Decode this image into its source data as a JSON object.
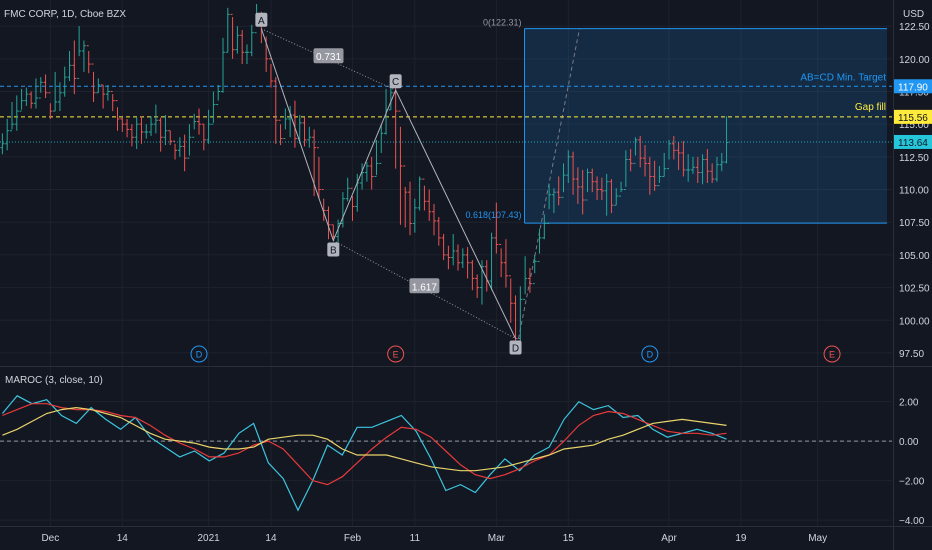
{
  "header": {
    "symbol_line": "FMC CORP, 1D, Cboe BZX",
    "currency": "USD"
  },
  "colors": {
    "background": "#131722",
    "grid": "#1e222d",
    "up": "#26a69a",
    "down": "#ef5350",
    "accent_blue": "#2196f3",
    "gap_yellow": "#ffeb3b",
    "price_cyan": "#26c6da",
    "maroc_blue": "#3cc6e0",
    "maroc_red": "#e83a3a",
    "maroc_yellow": "#e8d36a"
  },
  "chart_data": [
    {
      "type": "candlestick",
      "ylim": [
        96.5,
        124.5
      ],
      "y_ticks": [
        97.5,
        100.0,
        102.5,
        105.0,
        107.5,
        110.0,
        112.5,
        115.0,
        117.5,
        120.0,
        122.5
      ],
      "x_ticks": [
        {
          "label": "Dec",
          "i": 10
        },
        {
          "label": "14",
          "i": 25
        },
        {
          "label": "2021",
          "i": 43
        },
        {
          "label": "14",
          "i": 56
        },
        {
          "label": "Feb",
          "i": 73
        },
        {
          "label": "11",
          "i": 86
        },
        {
          "label": "Mar",
          "i": 103
        },
        {
          "label": "15",
          "i": 118
        },
        {
          "label": "Apr",
          "i": 139
        },
        {
          "label": "19",
          "i": 154
        },
        {
          "label": "May",
          "i": 170
        }
      ],
      "x_count": 186,
      "closes": [
        113.5,
        114.5,
        115.0,
        116.0,
        116.8,
        117.3,
        116.6,
        117.0,
        118.2,
        117.4,
        116.0,
        116.7,
        117.4,
        118.6,
        119.5,
        118.5,
        120.6,
        121.0,
        119.6,
        117.4,
        118.0,
        117.3,
        117.5,
        116.8,
        115.4,
        115.0,
        114.6,
        114.0,
        115.0,
        114.4,
        114.4,
        115.0,
        115.3,
        114.0,
        114.5,
        113.7,
        113.0,
        113.3,
        112.4,
        114.0,
        115.2,
        115.0,
        113.8,
        115.0,
        116.5,
        117.5,
        120.5,
        123.4,
        120.7,
        121.8,
        120.5,
        120.5,
        122.0,
        123.4,
        122.5,
        120.0,
        118.3,
        115.3,
        113.9,
        115.4,
        115.7,
        113.9,
        115.1,
        113.8,
        114.0,
        113.2,
        110.0,
        108.4,
        107.3,
        106.4,
        107.4,
        109.3,
        110.1,
        108.7,
        110.5,
        111.3,
        111.8,
        111.0,
        112.0,
        114.3,
        116.1,
        117.4,
        116.0,
        111.8,
        109.8,
        107.4,
        108.6,
        110.8,
        109.1,
        108.3,
        107.6,
        106.3,
        105.0,
        104.8,
        105.3,
        104.4,
        105.0,
        104.4,
        103.2,
        102.5,
        104.1,
        103.0,
        106.3,
        105.8,
        104.4,
        103.4,
        101.3,
        98.6,
        101.6,
        103.2,
        102.8,
        104.5,
        106.3,
        107.4,
        109.6,
        109.8,
        109.4,
        111.1,
        112.5,
        110.8,
        110.2,
        109.2,
        111.3,
        110.6,
        110.0,
        109.9,
        110.6,
        108.8,
        109.5,
        110.0,
        112.3,
        112.0,
        113.8,
        112.4,
        112.0,
        111.0,
        110.3,
        111.0,
        111.6,
        113.5,
        113.0,
        112.8,
        111.5,
        111.5,
        111.7,
        111.3,
        112.3,
        111.4,
        110.8,
        111.9,
        112.1,
        113.6
      ],
      "highs": [
        114.3,
        115.4,
        116.7,
        117.2,
        117.7,
        117.8,
        117.5,
        118.5,
        118.6,
        118.8,
        116.6,
        119.0,
        118.2,
        119.4,
        120.6,
        121.4,
        122.5,
        121.4,
        120.6,
        119.0,
        118.5,
        118.0,
        118.0,
        117.3,
        116.3,
        115.5,
        115.4,
        115.0,
        115.5,
        115.6,
        115.0,
        115.6,
        116.5,
        115.5,
        115.7,
        114.5,
        113.5,
        114.0,
        114.2,
        115.0,
        115.8,
        116.2,
        115.0,
        116.1,
        117.5,
        118.0,
        121.6,
        123.9,
        123.2,
        122.5,
        122.2,
        121.1,
        122.6,
        124.2,
        123.6,
        121.7,
        119.6,
        118.6,
        115.0,
        116.2,
        116.4,
        116.8,
        115.7,
        115.5,
        114.8,
        114.6,
        112.5,
        109.3,
        108.7,
        107.3,
        107.7,
        109.8,
        110.9,
        109.5,
        111.2,
        112.0,
        112.1,
        112.5,
        113.8,
        115.0,
        117.7,
        117.8,
        117.9,
        114.8,
        110.2,
        110.6,
        109.3,
        111.0,
        110.3,
        110.0,
        108.9,
        107.9,
        106.6,
        105.7,
        106.6,
        105.8,
        105.5,
        105.6,
        104.6,
        103.5,
        104.6,
        104.6,
        106.7,
        109.0,
        105.5,
        106.2,
        103.2,
        101.9,
        102.6,
        104.9,
        104.0,
        105.0,
        107.0,
        108.1,
        110.4,
        110.1,
        111.0,
        112.0,
        113.0,
        112.9,
        111.7,
        111.5,
        111.6,
        111.6,
        111.0,
        110.9,
        111.2,
        110.8,
        110.1,
        110.6,
        113.0,
        113.1,
        114.0,
        114.1,
        113.4,
        112.5,
        112.2,
        111.8,
        112.8,
        113.8,
        114.1,
        113.6,
        113.7,
        112.7,
        112.5,
        112.5,
        112.7,
        113.1,
        112.0,
        112.5,
        112.8,
        115.6
      ],
      "lows": [
        112.7,
        113.0,
        114.6,
        114.5,
        116.1,
        116.4,
        116.2,
        116.2,
        117.4,
        117.0,
        115.4,
        116.0,
        116.0,
        117.1,
        118.3,
        117.3,
        120.2,
        119.0,
        118.9,
        116.7,
        117.4,
        116.2,
        116.8,
        116.0,
        114.5,
        114.4,
        114.0,
        113.3,
        113.1,
        113.5,
        113.9,
        114.1,
        114.3,
        112.9,
        113.4,
        113.4,
        112.3,
        112.5,
        111.4,
        112.6,
        114.6,
        114.2,
        113.0,
        113.5,
        115.1,
        116.8,
        117.4,
        120.5,
        120.0,
        120.4,
        119.6,
        119.6,
        120.2,
        122.6,
        121.2,
        119.0,
        117.8,
        113.5,
        113.4,
        114.6,
        114.0,
        113.2,
        113.5,
        113.3,
        113.2,
        109.5,
        109.3,
        107.6,
        106.2,
        106.2,
        105.3,
        107.1,
        109.1,
        107.6,
        108.3,
        110.0,
        110.6,
        110.0,
        111.1,
        112.8,
        114.2,
        116.1,
        111.6,
        107.3,
        107.1,
        106.5,
        106.7,
        108.4,
        108.4,
        107.6,
        106.5,
        105.7,
        104.6,
        103.9,
        104.2,
        103.8,
        104.0,
        103.2,
        102.3,
        101.7,
        101.2,
        102.2,
        102.3,
        105.1,
        103.3,
        102.5,
        99.8,
        97.9,
        98.4,
        102.0,
        102.1,
        103.6,
        105.1,
        106.2,
        108.5,
        108.2,
        108.8,
        109.8,
        110.5,
        109.6,
        108.9,
        108.1,
        109.8,
        109.8,
        109.2,
        109.2,
        108.0,
        108.2,
        108.8,
        109.8,
        110.2,
        111.4,
        112.6,
        111.7,
        111.0,
        109.6,
        109.9,
        110.5,
        111.0,
        112.3,
        112.3,
        111.5,
        111.0,
        110.6,
        111.2,
        110.5,
        110.4,
        110.5,
        110.5,
        110.6,
        111.4,
        112.0
      ],
      "last_price": 113.64,
      "price_labels": [
        {
          "name": "ab-cd-target-level",
          "value": 117.9,
          "text": "117.90"
        },
        {
          "name": "gap-fill-level",
          "value": 115.56,
          "text": "115.56"
        },
        {
          "name": "last-price",
          "value": 113.64,
          "text": "113.64"
        }
      ],
      "annotations": {
        "points": [
          {
            "label": "A",
            "i": 54,
            "y": 122.3
          },
          {
            "label": "B",
            "i": 69,
            "y": 106.1
          },
          {
            "label": "C",
            "i": 82,
            "y": 117.6
          },
          {
            "label": "D",
            "i": 107,
            "y": 98.6
          }
        ],
        "ratios": [
          {
            "text": "0.731",
            "i": 68,
            "y": 120.2
          },
          {
            "text": "1.617",
            "i": 88,
            "y": 102.6
          }
        ],
        "fib_top_label": "0(122.31)",
        "fib_top_value": 122.31,
        "fib_618_label": "0.618(107.43)",
        "fib_618_value": 107.43,
        "ab_cd_label": "AB=CD Min. Target",
        "gap_fill_label": "Gap fill",
        "earnings_markers": [
          {
            "label": "D",
            "i": 41
          },
          {
            "label": "E",
            "i": 82
          },
          {
            "label": "D",
            "i": 135
          },
          {
            "label": "E",
            "i": 173
          }
        ]
      }
    },
    {
      "type": "line",
      "title": "MAROC (3, close, 10)",
      "ylim": [
        -4.3,
        3.2
      ],
      "y_ticks": [
        2.0,
        0.0,
        -2.0,
        -4.0
      ],
      "y_tick_labels": [
        "2.00",
        "0.00",
        "−2.00",
        "−4.00"
      ],
      "zero_line": 0,
      "series": [
        {
          "values": [
            1.4,
            2.3,
            1.9,
            2.1,
            1.3,
            0.9,
            1.7,
            1.1,
            0.6,
            1.2,
            0.2,
            -0.3,
            -0.8,
            -0.5,
            -1.0,
            -0.6,
            0.4,
            0.9,
            -1.1,
            -1.9,
            -3.5,
            -2.0,
            -0.2,
            -0.7,
            0.7,
            0.7,
            1.0,
            1.3,
            0.5,
            -0.9,
            -2.5,
            -2.2,
            -2.6,
            -1.7,
            -0.9,
            -1.5,
            -0.7,
            -0.3,
            1.1,
            2.0,
            1.6,
            1.8,
            1.2,
            1.3,
            0.6,
            0.2,
            0.4,
            0.6,
            0.4,
            0.1
          ]
        },
        {
          "values": [
            1.3,
            1.6,
            1.9,
            1.9,
            1.7,
            1.6,
            1.6,
            1.5,
            1.3,
            1.2,
            0.8,
            0.3,
            -0.1,
            -0.4,
            -0.8,
            -0.8,
            -0.6,
            -0.2,
            0.0,
            -0.4,
            -1.2,
            -2.0,
            -2.2,
            -1.8,
            -1.1,
            -0.4,
            0.2,
            0.7,
            0.6,
            0.2,
            -0.5,
            -1.2,
            -1.7,
            -1.9,
            -1.7,
            -1.4,
            -1.0,
            -0.7,
            0.0,
            0.8,
            1.3,
            1.5,
            1.4,
            1.1,
            0.8,
            0.5,
            0.4,
            0.4,
            0.3,
            0.4
          ]
        },
        {
          "values": [
            0.3,
            0.6,
            1.0,
            1.4,
            1.6,
            1.7,
            1.6,
            1.4,
            1.2,
            0.8,
            0.4,
            0.1,
            0.0,
            -0.1,
            -0.3,
            -0.4,
            -0.4,
            -0.3,
            0.1,
            0.2,
            0.3,
            0.3,
            0.1,
            -0.4,
            -0.7,
            -0.7,
            -0.7,
            -0.9,
            -1.1,
            -1.3,
            -1.4,
            -1.5,
            -1.5,
            -1.4,
            -1.3,
            -1.1,
            -0.9,
            -0.7,
            -0.4,
            -0.3,
            -0.2,
            0.1,
            0.3,
            0.6,
            0.9,
            1.0,
            1.1,
            1.0,
            0.9,
            0.8
          ]
        }
      ]
    }
  ]
}
